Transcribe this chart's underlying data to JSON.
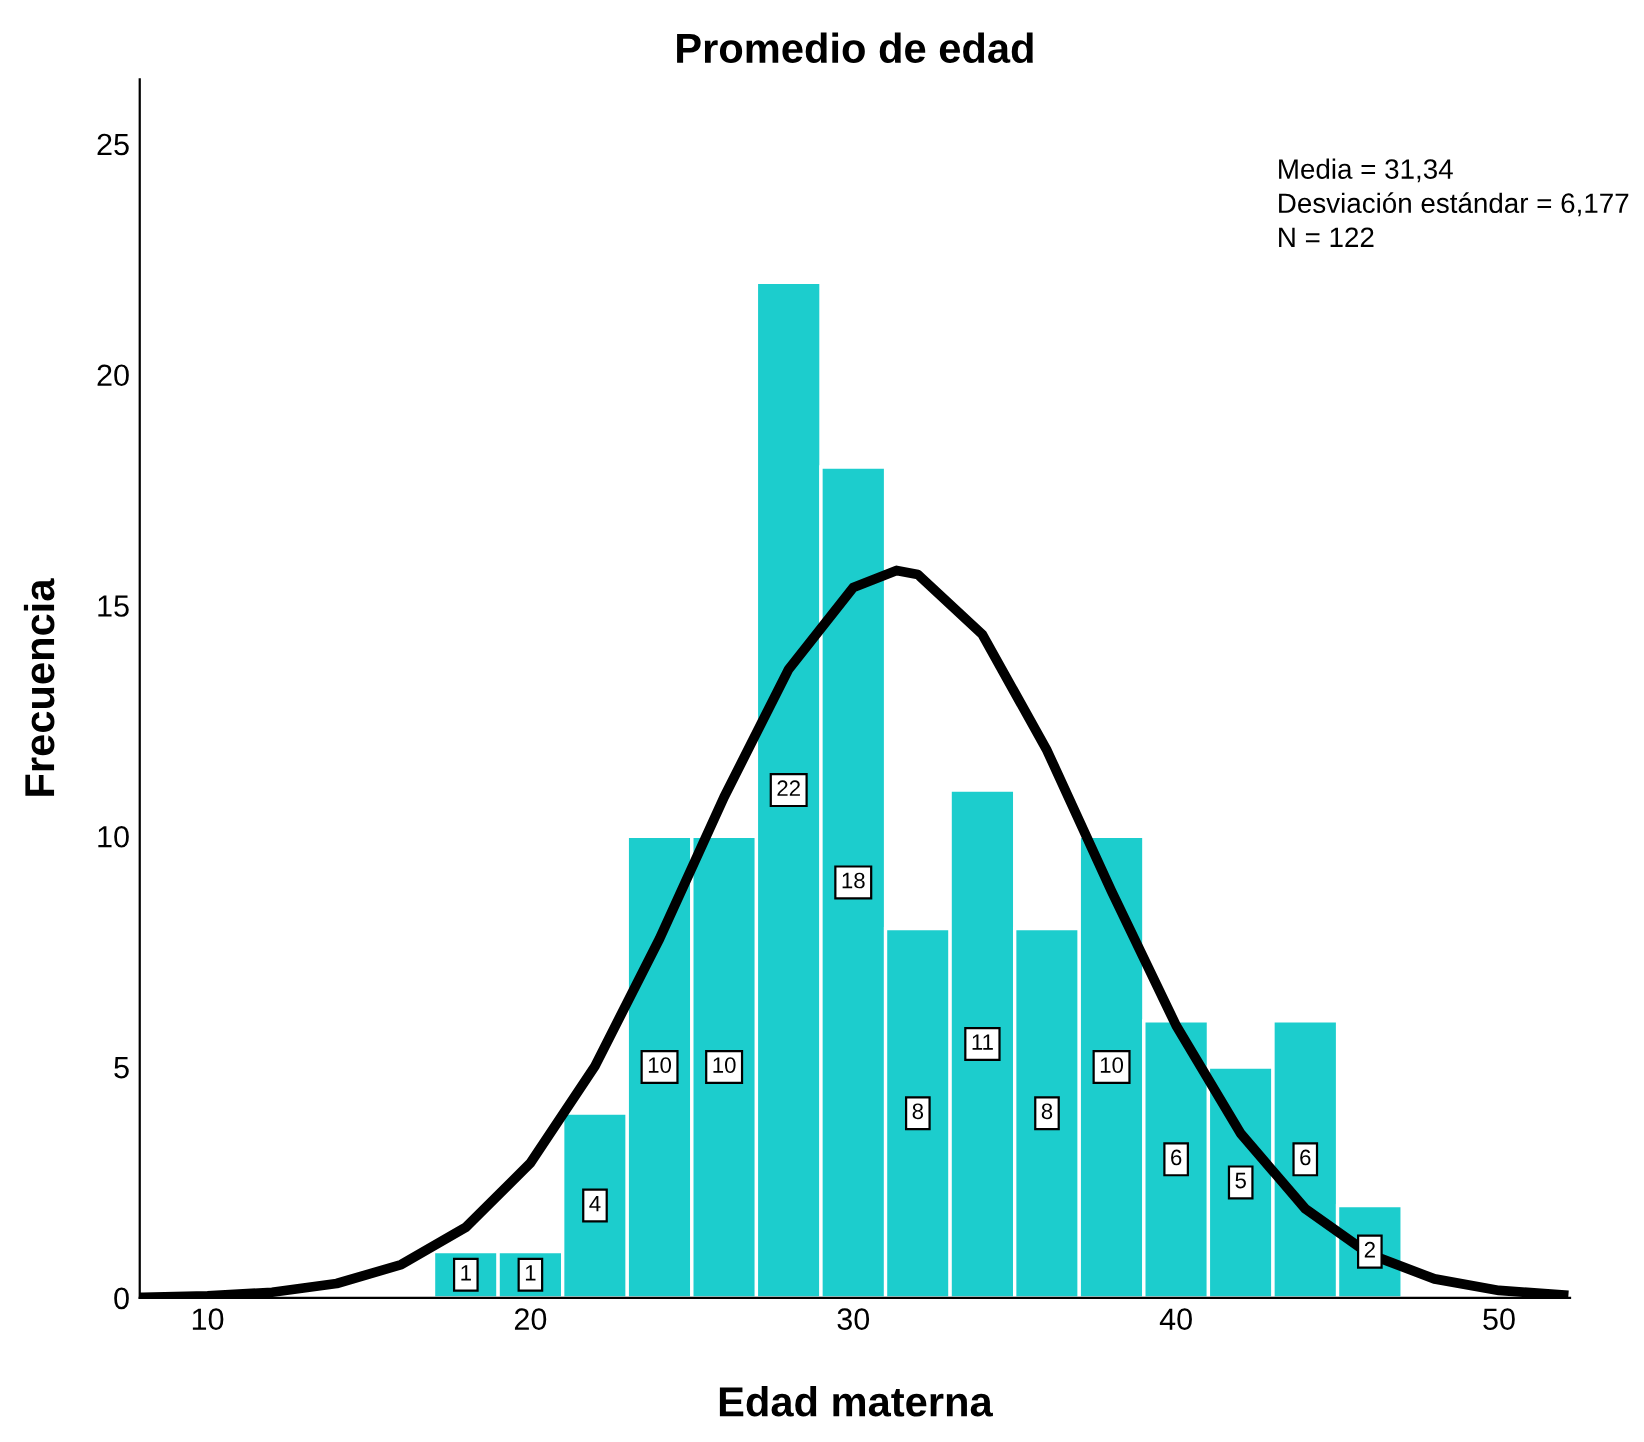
{
  "chart_data": {
    "type": "histogram",
    "title": "Promedio de edad",
    "xlabel": "Edad materna",
    "ylabel": "Frecuencia",
    "series": [
      {
        "color": "#1ccdcd",
        "bins": [
          17,
          19,
          21,
          23,
          25,
          27,
          29,
          31,
          33,
          35,
          37,
          39,
          41,
          43,
          45,
          47
        ],
        "values": [
          1,
          1,
          4,
          10,
          10,
          22,
          18,
          8,
          11,
          8,
          10,
          6,
          5,
          6,
          2
        ],
        "value_labels": [
          "1",
          "1",
          "4",
          "10",
          "10",
          "22",
          "18",
          "8",
          "11",
          "8",
          "10",
          "6",
          "5",
          "6",
          "2"
        ]
      },
      {
        "type": "line",
        "color": "#000000",
        "x": [
          8,
          10,
          12,
          14,
          16,
          18,
          20,
          22,
          24,
          26,
          28,
          30,
          31.34,
          32,
          34,
          36,
          38,
          40,
          42,
          44,
          46,
          48,
          50,
          52
        ],
        "values": [
          0.01,
          0.04,
          0.12,
          0.31,
          0.72,
          1.53,
          2.92,
          5.02,
          7.78,
          10.85,
          13.62,
          15.39,
          15.76,
          15.67,
          14.37,
          11.86,
          8.81,
          5.9,
          3.56,
          1.93,
          0.94,
          0.41,
          0.16,
          0.06
        ]
      }
    ],
    "xlim": [
      7.9,
      52.2
    ],
    "xticks": [
      10,
      20,
      30,
      40,
      50
    ],
    "ylim": [
      0,
      26.4
    ],
    "yticks": [
      0,
      5,
      10,
      15,
      20,
      25
    ],
    "grid": false,
    "legend": false,
    "annotations": [
      "Media = 31,34",
      "Desviación estándar = 6,177",
      "N = 122"
    ]
  }
}
